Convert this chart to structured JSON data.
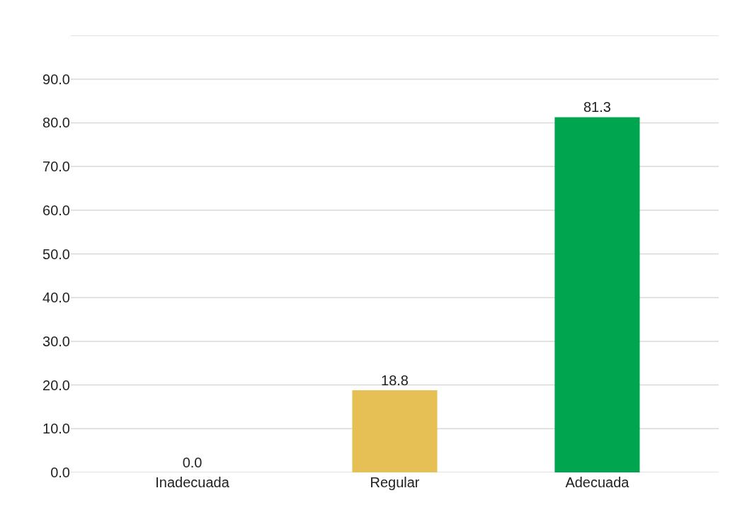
{
  "chart_data": {
    "type": "bar",
    "categories": [
      "Inadecuada",
      "Regular",
      "Adecuada"
    ],
    "values": [
      0.0,
      18.8,
      81.3
    ],
    "colors": [
      "#b03a2e",
      "#e6bf55",
      "#00a64f"
    ],
    "value_labels": [
      "0.0",
      "18.8",
      "81.3"
    ],
    "ylim": [
      0,
      100
    ],
    "yticks": [
      {
        "value": 0,
        "label": "0.0"
      },
      {
        "value": 10,
        "label": "10.0"
      },
      {
        "value": 20,
        "label": "20.0"
      },
      {
        "value": 30,
        "label": "30.0"
      },
      {
        "value": 40,
        "label": "40.0"
      },
      {
        "value": 50,
        "label": "50.0"
      },
      {
        "value": 60,
        "label": "60.0"
      },
      {
        "value": 70,
        "label": "70.0"
      },
      {
        "value": 80,
        "label": "80.0"
      },
      {
        "value": 90,
        "label": "90.0"
      },
      {
        "value": 100,
        "label": null
      }
    ],
    "grid": "y"
  }
}
